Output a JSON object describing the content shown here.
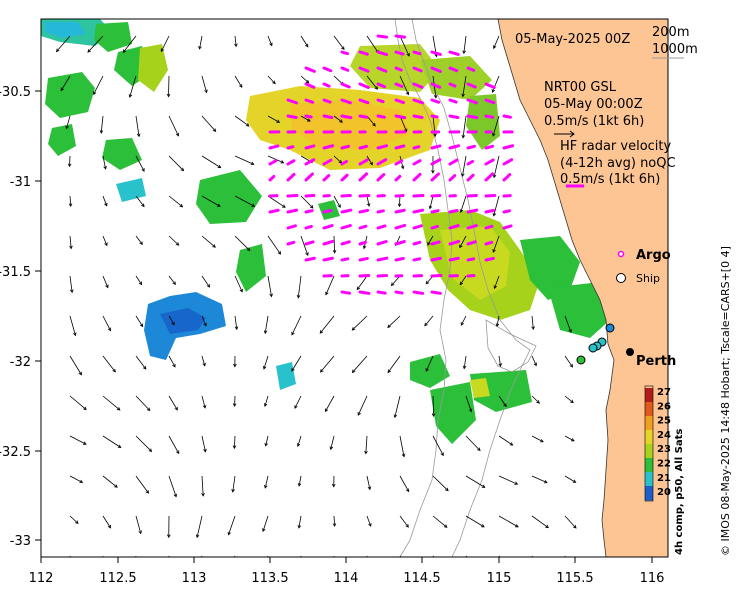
{
  "map": {
    "x_ticks": [
      "112",
      "112.5",
      "113",
      "113.5",
      "114",
      "114.5",
      "115",
      "115.5",
      "116"
    ],
    "y_ticks": [
      "-30.5",
      "-31",
      "-31.5",
      "-32",
      "-32.5",
      "-33"
    ],
    "date_label": "05-May-2025 00Z",
    "depth_label_1": "200m",
    "depth_label_2": "1000m",
    "gsl_title": "NRT00 GSL",
    "gsl_date": "05-May 00:00Z",
    "gsl_scale": "0.5m/s (1kt 6h)",
    "hf_title": "HF radar velocity",
    "hf_avg": "(4-12h avg) noQC",
    "hf_scale": "0.5m/s (1kt 6h)",
    "argo_label": "Argo",
    "ship_label": "Ship",
    "city_label": "Perth",
    "credit": "© IMOS 08-May-2025 14:48 Hobart; Tscale=CARS+[0 4]",
    "colorbar_title": "4h comp, p50, All Sats",
    "colorbar_ticks": [
      "27",
      "26",
      "25",
      "24",
      "23",
      "22",
      "21",
      "20"
    ],
    "colors": {
      "land": "#fdc593",
      "hf_vector": "#ff00ff",
      "coast": "#333333",
      "isobath": "#9a9a9a"
    }
  }
}
